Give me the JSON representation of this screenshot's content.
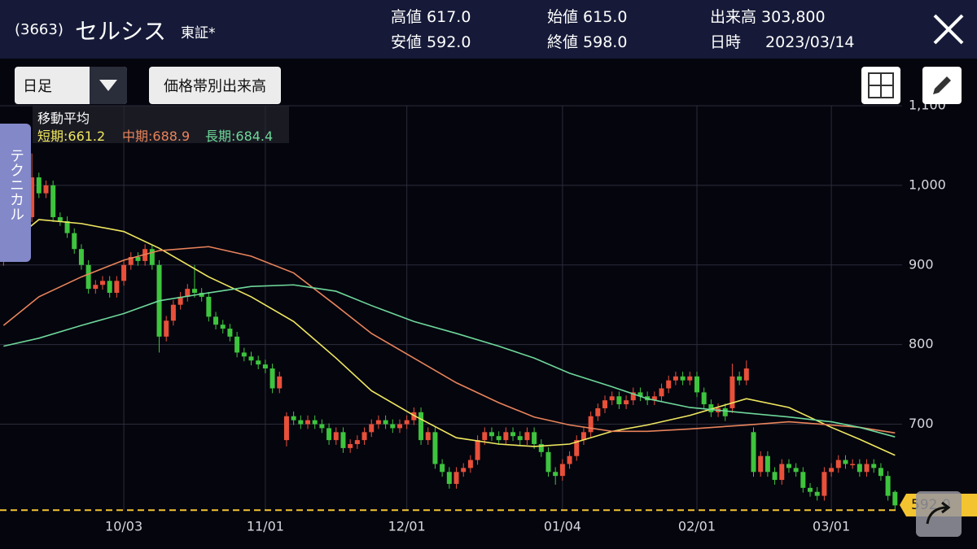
{
  "header": {
    "code": "(3663)",
    "name": "セルシス",
    "market": "東証*",
    "stats": [
      {
        "label": "高値",
        "value": "617.0"
      },
      {
        "label": "安値",
        "value": "592.0"
      },
      {
        "label": "始値",
        "value": "615.0"
      },
      {
        "label": "終値",
        "value": "598.0"
      },
      {
        "label": "出来高",
        "value": "303,800"
      },
      {
        "label": "日時",
        "value": "2023/03/14"
      }
    ]
  },
  "toolbar": {
    "period": "日足",
    "volume_profile": "価格帯別出来高",
    "side_tab": "テクニカル"
  },
  "chart_data": {
    "type": "candlestick",
    "legend_title": "移動平均",
    "candles": [
      [
        905,
        936,
        899,
        930
      ],
      [
        930,
        936,
        914,
        920
      ],
      [
        920,
        951,
        914,
        945
      ],
      [
        945,
        966,
        939,
        960
      ],
      [
        960,
        1040,
        954,
        1010
      ],
      [
        1010,
        1016,
        984,
        990
      ],
      [
        990,
        1006,
        984,
        1000
      ],
      [
        1000,
        1006,
        954,
        960
      ],
      [
        960,
        966,
        949,
        955
      ],
      [
        955,
        961,
        934,
        940
      ],
      [
        940,
        946,
        914,
        920
      ],
      [
        920,
        926,
        894,
        900
      ],
      [
        900,
        906,
        864,
        870
      ],
      [
        870,
        881,
        864,
        875
      ],
      [
        875,
        886,
        869,
        880
      ],
      [
        880,
        886,
        859,
        865
      ],
      [
        865,
        886,
        859,
        880
      ],
      [
        880,
        906,
        874,
        900
      ],
      [
        900,
        916,
        894,
        910
      ],
      [
        910,
        916,
        899,
        905
      ],
      [
        905,
        926,
        899,
        920
      ],
      [
        920,
        926,
        894,
        900
      ],
      [
        900,
        906,
        790,
        810
      ],
      [
        810,
        836,
        804,
        830
      ],
      [
        830,
        856,
        824,
        850
      ],
      [
        850,
        866,
        844,
        860
      ],
      [
        860,
        876,
        854,
        870
      ],
      [
        870,
        900,
        859,
        865
      ],
      [
        865,
        871,
        854,
        860
      ],
      [
        860,
        866,
        829,
        835
      ],
      [
        835,
        841,
        819,
        825
      ],
      [
        825,
        831,
        814,
        820
      ],
      [
        820,
        826,
        804,
        810
      ],
      [
        810,
        816,
        784,
        790
      ],
      [
        790,
        796,
        779,
        785
      ],
      [
        785,
        791,
        774,
        780
      ],
      [
        780,
        786,
        769,
        775
      ],
      [
        775,
        781,
        764,
        770
      ],
      [
        770,
        776,
        739,
        745
      ],
      [
        745,
        766,
        739,
        760
      ],
      [
        680,
        715,
        672,
        710
      ],
      [
        710,
        716,
        699,
        705
      ],
      [
        705,
        711,
        694,
        700
      ],
      [
        700,
        711,
        694,
        705
      ],
      [
        705,
        711,
        694,
        700
      ],
      [
        700,
        706,
        689,
        695
      ],
      [
        695,
        701,
        674,
        680
      ],
      [
        680,
        696,
        674,
        690
      ],
      [
        690,
        696,
        664,
        670
      ],
      [
        670,
        681,
        664,
        675
      ],
      [
        675,
        686,
        669,
        680
      ],
      [
        680,
        696,
        674,
        690
      ],
      [
        690,
        706,
        684,
        700
      ],
      [
        700,
        711,
        694,
        705
      ],
      [
        705,
        711,
        694,
        700
      ],
      [
        700,
        706,
        689,
        695
      ],
      [
        695,
        706,
        689,
        700
      ],
      [
        700,
        711,
        694,
        705
      ],
      [
        705,
        721,
        699,
        715
      ],
      [
        715,
        721,
        674,
        680
      ],
      [
        680,
        696,
        674,
        690
      ],
      [
        690,
        696,
        644,
        650
      ],
      [
        650,
        656,
        634,
        640
      ],
      [
        640,
        646,
        619,
        625
      ],
      [
        625,
        646,
        619,
        640
      ],
      [
        640,
        651,
        634,
        645
      ],
      [
        645,
        661,
        639,
        655
      ],
      [
        655,
        686,
        649,
        680
      ],
      [
        680,
        696,
        674,
        690
      ],
      [
        690,
        696,
        679,
        685
      ],
      [
        685,
        691,
        674,
        680
      ],
      [
        680,
        696,
        674,
        690
      ],
      [
        690,
        696,
        679,
        685
      ],
      [
        685,
        691,
        674,
        680
      ],
      [
        680,
        696,
        674,
        690
      ],
      [
        690,
        696,
        669,
        675
      ],
      [
        675,
        681,
        659,
        665
      ],
      [
        665,
        671,
        634,
        640
      ],
      [
        640,
        646,
        624,
        635
      ],
      [
        635,
        656,
        629,
        650
      ],
      [
        650,
        666,
        644,
        660
      ],
      [
        660,
        686,
        654,
        680
      ],
      [
        680,
        696,
        674,
        690
      ],
      [
        690,
        716,
        684,
        710
      ],
      [
        710,
        726,
        704,
        720
      ],
      [
        720,
        736,
        714,
        730
      ],
      [
        730,
        741,
        724,
        735
      ],
      [
        735,
        741,
        719,
        725
      ],
      [
        725,
        736,
        719,
        730
      ],
      [
        730,
        746,
        724,
        740
      ],
      [
        740,
        746,
        729,
        735
      ],
      [
        735,
        741,
        724,
        730
      ],
      [
        730,
        741,
        724,
        735
      ],
      [
        735,
        751,
        729,
        745
      ],
      [
        745,
        761,
        739,
        755
      ],
      [
        755,
        766,
        749,
        760
      ],
      [
        760,
        766,
        749,
        755
      ],
      [
        755,
        766,
        749,
        760
      ],
      [
        760,
        766,
        734,
        740
      ],
      [
        740,
        746,
        719,
        725
      ],
      [
        725,
        731,
        709,
        715
      ],
      [
        715,
        726,
        709,
        720
      ],
      [
        720,
        726,
        704,
        710
      ],
      [
        720,
        776,
        714,
        760
      ],
      [
        760,
        766,
        749,
        755
      ],
      [
        755,
        780,
        749,
        770
      ],
      [
        690,
        696,
        634,
        640
      ],
      [
        640,
        666,
        634,
        660
      ],
      [
        660,
        666,
        634,
        640
      ],
      [
        640,
        646,
        624,
        630
      ],
      [
        630,
        656,
        624,
        650
      ],
      [
        650,
        656,
        639,
        645
      ],
      [
        645,
        651,
        634,
        640
      ],
      [
        640,
        646,
        614,
        620
      ],
      [
        620,
        626,
        609,
        615
      ],
      [
        615,
        621,
        604,
        610
      ],
      [
        610,
        646,
        604,
        640
      ],
      [
        640,
        651,
        634,
        645
      ],
      [
        645,
        661,
        639,
        655
      ],
      [
        655,
        661,
        644,
        650
      ],
      [
        650,
        656,
        644,
        650
      ],
      [
        650,
        656,
        634,
        640
      ],
      [
        640,
        656,
        634,
        650
      ],
      [
        650,
        656,
        639,
        645
      ],
      [
        645,
        651,
        629,
        635
      ],
      [
        635,
        641,
        604,
        610
      ],
      [
        615,
        617,
        592,
        598
      ]
    ],
    "series": [
      {
        "name": "短期:661.2",
        "color": "#f0e860",
        "x": [
          0,
          5,
          11,
          17,
          22,
          29,
          35,
          41,
          47,
          52,
          58,
          64,
          70,
          75,
          80,
          86,
          91,
          97,
          105,
          111,
          117,
          121,
          126
        ],
        "values": [
          921,
          957,
          952,
          942,
          921,
          885,
          860,
          829,
          783,
          742,
          711,
          683,
          675,
          672,
          675,
          691,
          699,
          711,
          732,
          721,
          696,
          681,
          661
        ]
      },
      {
        "name": "中期:688.9",
        "color": "#e8845a",
        "x": [
          0,
          5,
          11,
          17,
          22,
          29,
          35,
          41,
          47,
          52,
          58,
          64,
          70,
          75,
          80,
          86,
          91,
          97,
          105,
          111,
          117,
          121,
          126
        ],
        "values": [
          824,
          860,
          885,
          906,
          918,
          923,
          911,
          890,
          849,
          814,
          783,
          752,
          727,
          709,
          699,
          691,
          691,
          694,
          699,
          703,
          699,
          696,
          689
        ]
      },
      {
        "name": "長期:684.4",
        "color": "#6ed89a",
        "x": [
          0,
          5,
          11,
          17,
          22,
          29,
          35,
          41,
          47,
          52,
          58,
          64,
          70,
          75,
          80,
          86,
          91,
          97,
          105,
          111,
          117,
          121,
          126
        ],
        "values": [
          798,
          808,
          824,
          839,
          855,
          865,
          873,
          875,
          867,
          849,
          829,
          814,
          798,
          783,
          764,
          747,
          732,
          721,
          714,
          709,
          703,
          696,
          684
        ]
      }
    ],
    "xlim": [
      -0.5,
      127
    ],
    "xticks": [
      {
        "value": 17,
        "label": "10/03"
      },
      {
        "value": 37,
        "label": "11/01"
      },
      {
        "value": 57,
        "label": "12/01"
      },
      {
        "value": 79,
        "label": "01/04"
      },
      {
        "value": 98,
        "label": "02/01"
      },
      {
        "value": 117,
        "label": "03/01"
      }
    ],
    "ylim": [
      580,
      1100
    ],
    "yticks": [
      700,
      800,
      900,
      {
        "value": 1000,
        "label": "1,000"
      },
      {
        "value": 1100,
        "label": "1,100"
      }
    ],
    "grid": true,
    "up_color": "#e8503a",
    "down_color": "#3ec43e",
    "price_line": {
      "value": 592,
      "label": "592.0"
    }
  }
}
